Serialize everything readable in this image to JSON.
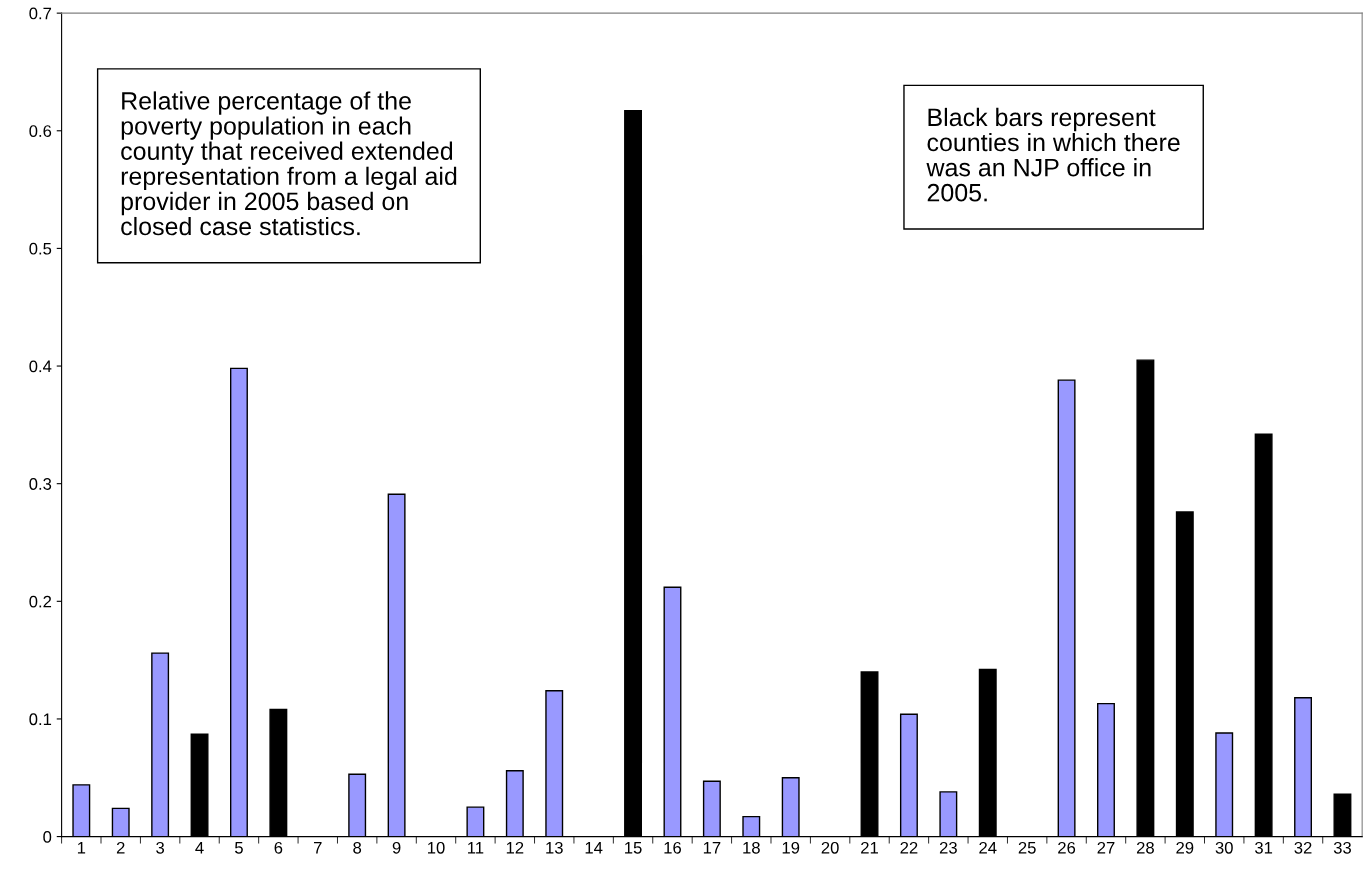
{
  "chart_data": {
    "type": "bar",
    "categories": [
      "1",
      "2",
      "3",
      "4",
      "5",
      "6",
      "7",
      "8",
      "9",
      "10",
      "11",
      "12",
      "13",
      "14",
      "15",
      "16",
      "17",
      "18",
      "19",
      "20",
      "21",
      "22",
      "23",
      "24",
      "25",
      "26",
      "27",
      "28",
      "29",
      "30",
      "31",
      "32",
      "33"
    ],
    "values": [
      0.044,
      0.024,
      0.156,
      0.087,
      0.398,
      0.108,
      0,
      0.053,
      0.291,
      0,
      0.025,
      0.056,
      0.124,
      0,
      0.617,
      0.212,
      0.047,
      0.017,
      0.05,
      0,
      0.14,
      0.104,
      0.038,
      0.142,
      0,
      0.388,
      0.113,
      0.405,
      0.276,
      0.088,
      0.342,
      0.118,
      0.036
    ],
    "colors": [
      "#9999ff",
      "#9999ff",
      "#9999ff",
      "#000000",
      "#9999ff",
      "#000000",
      "#9999ff",
      "#9999ff",
      "#9999ff",
      "#9999ff",
      "#9999ff",
      "#9999ff",
      "#9999ff",
      "#9999ff",
      "#000000",
      "#9999ff",
      "#9999ff",
      "#9999ff",
      "#9999ff",
      "#9999ff",
      "#000000",
      "#9999ff",
      "#9999ff",
      "#000000",
      "#9999ff",
      "#9999ff",
      "#9999ff",
      "#000000",
      "#000000",
      "#9999ff",
      "#000000",
      "#9999ff",
      "#000000"
    ],
    "ylim": [
      0,
      0.7
    ],
    "yticks": [
      {
        "value": 0,
        "label": "0"
      },
      0.1,
      0.2,
      0.3,
      0.4,
      0.5,
      0.6,
      0.7
    ],
    "grid": false,
    "annotations": [
      "Relative percentage of the\npoverty population in each\ncounty that received extended\nrepresentation from a legal aid\nprovider in 2005 based on\nclosed case statistics.",
      "Black bars represent\ncounties in which there\nwas an NJP office in\n2005."
    ]
  }
}
